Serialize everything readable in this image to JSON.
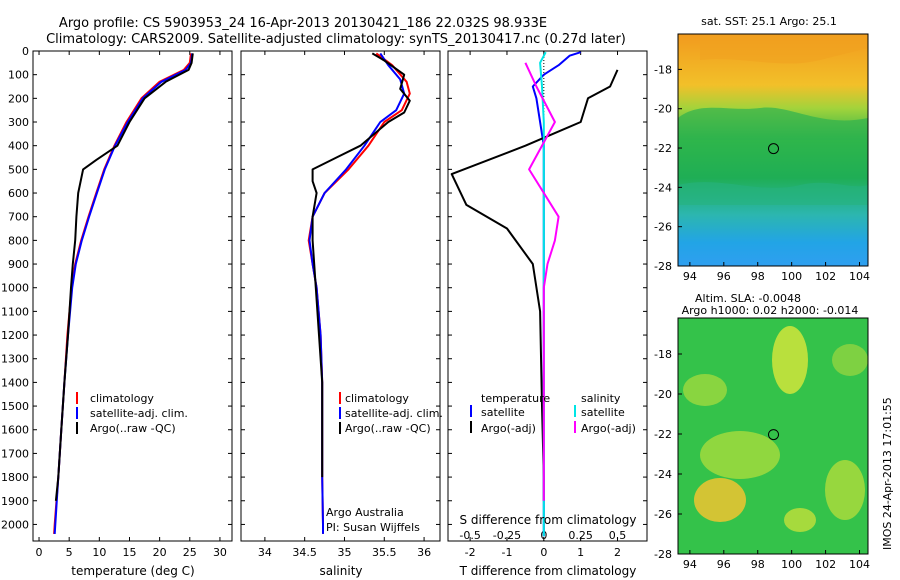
{
  "title_line1": "Argo profile: CS 5903953_24 16-Apr-2013 20130421_186 22.032S 98.933E",
  "title_line2": "Climatology: CARS2009. Satellite-adjusted climatology: synTS_20130417.nc (0.27d later)",
  "colors": {
    "climatology": "#ff0000",
    "satellite": "#0000ff",
    "argo": "#000000",
    "sat_salinity": "#00e5e5",
    "argo_salinity": "#ff00ff"
  },
  "depth_axis": {
    "ticks": [
      0,
      100,
      200,
      300,
      400,
      500,
      600,
      700,
      800,
      900,
      1000,
      1100,
      1200,
      1300,
      1400,
      1500,
      1600,
      1700,
      1800,
      1900,
      2000
    ],
    "ylim": [
      0,
      2070
    ],
    "reversed": true
  },
  "chart_data": [
    {
      "id": "temperature",
      "type": "line",
      "xlabel": "temperature (deg C)",
      "xlim": [
        -1,
        32
      ],
      "xticks": [
        0,
        5,
        10,
        15,
        20,
        25,
        30
      ],
      "legend": [
        "climatology",
        "satellite-adj. clim.",
        "Argo(..raw -QC)"
      ],
      "series": [
        {
          "name": "climatology",
          "color": "#ff0000",
          "points": [
            [
              25.2,
              10
            ],
            [
              25.0,
              50
            ],
            [
              24.0,
              80
            ],
            [
              20.0,
              130
            ],
            [
              17.0,
              200
            ],
            [
              14.5,
              300
            ],
            [
              12.5,
              400
            ],
            [
              10.8,
              500
            ],
            [
              9.5,
              600
            ],
            [
              8.2,
              700
            ],
            [
              7.0,
              800
            ],
            [
              6.0,
              900
            ],
            [
              5.4,
              1000
            ],
            [
              4.7,
              1200
            ],
            [
              4.2,
              1400
            ],
            [
              3.7,
              1600
            ],
            [
              3.2,
              1800
            ],
            [
              2.6,
              2000
            ],
            [
              2.5,
              2040
            ]
          ]
        },
        {
          "name": "satellite-adj. clim.",
          "color": "#0000ff",
          "points": [
            [
              25.4,
              10
            ],
            [
              25.2,
              50
            ],
            [
              24.3,
              80
            ],
            [
              20.3,
              130
            ],
            [
              17.2,
              200
            ],
            [
              14.7,
              300
            ],
            [
              12.6,
              400
            ],
            [
              10.9,
              500
            ],
            [
              9.6,
              600
            ],
            [
              8.3,
              700
            ],
            [
              7.1,
              800
            ],
            [
              6.1,
              900
            ],
            [
              5.5,
              1000
            ],
            [
              4.8,
              1200
            ],
            [
              4.2,
              1400
            ],
            [
              3.7,
              1600
            ],
            [
              3.2,
              1800
            ],
            [
              2.7,
              2000
            ],
            [
              2.6,
              2040
            ]
          ]
        },
        {
          "name": "Argo(..raw -QC)",
          "color": "#000000",
          "points": [
            [
              25.5,
              10
            ],
            [
              25.3,
              50
            ],
            [
              24.8,
              80
            ],
            [
              21.0,
              130
            ],
            [
              17.5,
              200
            ],
            [
              15.0,
              300
            ],
            [
              13.0,
              400
            ],
            [
              9.5,
              460
            ],
            [
              7.3,
              500
            ],
            [
              6.5,
              600
            ],
            [
              6.2,
              700
            ],
            [
              6.0,
              800
            ],
            [
              5.6,
              900
            ],
            [
              5.3,
              1000
            ],
            [
              4.8,
              1200
            ],
            [
              4.2,
              1400
            ],
            [
              3.7,
              1600
            ],
            [
              3.2,
              1800
            ],
            [
              2.8,
              1900
            ]
          ]
        }
      ]
    },
    {
      "id": "salinity",
      "type": "line",
      "xlabel": "salinity",
      "xlim": [
        33.7,
        36.2
      ],
      "xticks": [
        34,
        34.5,
        35,
        35.5,
        36
      ],
      "xticklabels": [
        "34",
        "34.5",
        "35",
        "35.5",
        "36"
      ],
      "legend": [
        "climatology",
        "satellite-adj. clim.",
        "Argo(..raw -QC)"
      ],
      "series": [
        {
          "name": "climatology",
          "color": "#ff0000",
          "points": [
            [
              35.4,
              10
            ],
            [
              35.6,
              60
            ],
            [
              35.78,
              130
            ],
            [
              35.82,
              180
            ],
            [
              35.72,
              250
            ],
            [
              35.5,
              300
            ],
            [
              35.3,
              400
            ],
            [
              35.05,
              500
            ],
            [
              34.75,
              600
            ],
            [
              34.6,
              700
            ],
            [
              34.55,
              800
            ],
            [
              34.6,
              900
            ],
            [
              34.65,
              1000
            ],
            [
              34.7,
              1200
            ],
            [
              34.72,
              1400
            ],
            [
              34.72,
              1600
            ],
            [
              34.72,
              1800
            ],
            [
              34.73,
              2000
            ],
            [
              34.73,
              2040
            ]
          ]
        },
        {
          "name": "satellite-adj. clim.",
          "color": "#0000ff",
          "points": [
            [
              35.45,
              10
            ],
            [
              35.55,
              60
            ],
            [
              35.7,
              120
            ],
            [
              35.75,
              180
            ],
            [
              35.65,
              250
            ],
            [
              35.45,
              300
            ],
            [
              35.25,
              400
            ],
            [
              35.02,
              500
            ],
            [
              34.75,
              600
            ],
            [
              34.6,
              700
            ],
            [
              34.56,
              800
            ],
            [
              34.6,
              900
            ],
            [
              34.65,
              1000
            ],
            [
              34.7,
              1200
            ],
            [
              34.72,
              1400
            ],
            [
              34.72,
              1600
            ],
            [
              34.72,
              1800
            ],
            [
              34.73,
              2000
            ],
            [
              34.73,
              2040
            ]
          ]
        },
        {
          "name": "Argo(..raw -QC)",
          "color": "#000000",
          "points": [
            [
              35.35,
              10
            ],
            [
              35.5,
              40
            ],
            [
              35.75,
              100
            ],
            [
              35.7,
              160
            ],
            [
              35.82,
              210
            ],
            [
              35.75,
              260
            ],
            [
              35.55,
              300
            ],
            [
              35.2,
              400
            ],
            [
              34.9,
              450
            ],
            [
              34.6,
              500
            ],
            [
              34.6,
              550
            ],
            [
              34.65,
              600
            ],
            [
              34.6,
              700
            ],
            [
              34.6,
              800
            ],
            [
              34.62,
              900
            ],
            [
              34.64,
              1000
            ],
            [
              34.68,
              1200
            ],
            [
              34.72,
              1400
            ],
            [
              34.72,
              1600
            ],
            [
              34.72,
              1800
            ]
          ]
        }
      ]
    },
    {
      "id": "difference",
      "type": "line",
      "xlabel_bottom": "T difference from climatology",
      "xlabel_top": "S difference from climatology",
      "xlim": [
        -2.6,
        2.8
      ],
      "xticks_bottom": [
        -2,
        -1,
        0,
        1,
        2
      ],
      "xticks_top": [
        -0.5,
        -0.25,
        0,
        0.25,
        0.5
      ],
      "xticks_top_labels": [
        "-0.5",
        "-0.25",
        "0",
        "0.25",
        "0.5"
      ],
      "legend_left": [
        "temperature",
        "satellite",
        "Argo(-adj)"
      ],
      "legend_right": [
        "salinity",
        "satellite",
        "Argo(-adj)"
      ],
      "series": [
        {
          "name": "temperature satellite",
          "color": "#0000ff",
          "points": [
            [
              1.0,
              5
            ],
            [
              0.7,
              20
            ],
            [
              0.4,
              60
            ],
            [
              0.0,
              100
            ],
            [
              -0.3,
              150
            ],
            [
              -0.2,
              200
            ],
            [
              -0.1,
              300
            ],
            [
              0.0,
              400
            ],
            [
              0.0,
              600
            ],
            [
              0.0,
              1000
            ],
            [
              0.0,
              1500
            ],
            [
              0.0,
              2050
            ]
          ]
        },
        {
          "name": "temperature Argo(-adj)",
          "color": "#000000",
          "points": [
            [
              2.0,
              80
            ],
            [
              1.8,
              150
            ],
            [
              1.2,
              200
            ],
            [
              1.0,
              300
            ],
            [
              -0.5,
              400
            ],
            [
              -2.5,
              520
            ],
            [
              -2.1,
              650
            ],
            [
              -1.0,
              750
            ],
            [
              -0.3,
              900
            ],
            [
              -0.1,
              1100
            ],
            [
              -0.05,
              1500
            ],
            [
              0.0,
              1800
            ],
            [
              0.0,
              1900
            ]
          ]
        },
        {
          "name": "salinity satellite",
          "color": "#00e5e5",
          "points": [
            [
              0.05,
              5
            ],
            [
              -0.1,
              50
            ],
            [
              -0.05,
              150
            ],
            [
              0.0,
              300
            ],
            [
              0.0,
              600
            ],
            [
              0.0,
              1000
            ],
            [
              0.0,
              1500
            ],
            [
              0.0,
              2050
            ]
          ]
        },
        {
          "name": "salinity Argo(-adj)",
          "color": "#ff00ff",
          "points": [
            [
              -0.5,
              50
            ],
            [
              -0.2,
              150
            ],
            [
              0.3,
              300
            ],
            [
              -0.4,
              500
            ],
            [
              0.4,
              700
            ],
            [
              0.3,
              800
            ],
            [
              0.1,
              900
            ],
            [
              0.0,
              1000
            ],
            [
              0.0,
              1500
            ],
            [
              0.0,
              1900
            ]
          ]
        }
      ]
    }
  ],
  "map_sst": {
    "title": "sat. SST: 25.1  Argo: 25.1",
    "xticks": [
      94,
      96,
      98,
      100,
      102,
      104
    ],
    "yticks": [
      -18,
      -20,
      -22,
      -24,
      -26,
      -28
    ],
    "xlim": [
      93.3,
      104.5
    ],
    "ylim": [
      -28,
      -16.2
    ],
    "marker": {
      "lon": 98.93,
      "lat": -22.03
    }
  },
  "map_sla": {
    "title_line1": "Altim. SLA: -0.0048",
    "title_line2": "Argo h1000: 0.02 h2000: -0.014",
    "xticks": [
      94,
      96,
      98,
      100,
      102,
      104
    ],
    "yticks": [
      -18,
      -20,
      -22,
      -24,
      -26,
      -28
    ],
    "xlim": [
      93.3,
      104.5
    ],
    "ylim": [
      -28,
      -16.2
    ],
    "marker": {
      "lon": 98.93,
      "lat": -22.03
    }
  },
  "side_label": "IMOS 24-Apr-2013 17:01:55",
  "annotations": [
    "Argo Australia",
    "PI: Susan Wijffels"
  ]
}
